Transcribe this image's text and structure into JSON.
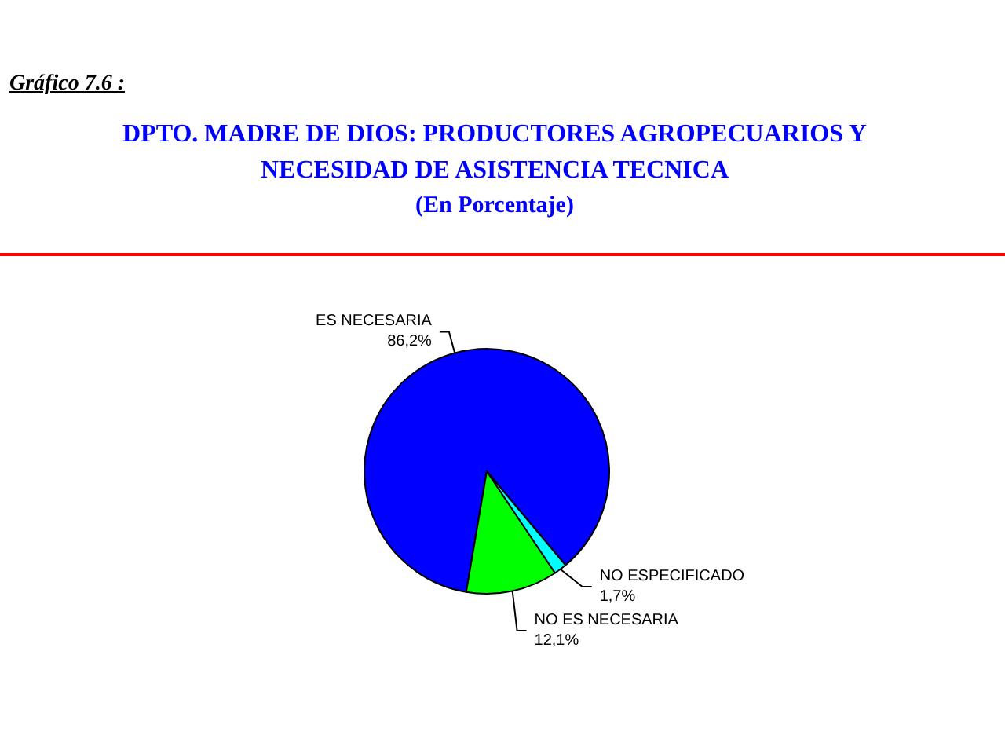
{
  "chart_data": {
    "type": "pie",
    "title": "DPTO. MADRE DE DIOS: PRODUCTORES AGROPECUARIOS Y NECESIDAD DE ASISTENCIA TECNICA",
    "subtitle": "(En Porcentaje)",
    "annotations": [
      "Gráfico 7.6 :"
    ],
    "categories": [
      "ES NECESARIA",
      "NO ES NECESARIA",
      "NO ESPECIFICADO"
    ],
    "values": [
      86.2,
      12.1,
      1.7
    ],
    "value_labels": [
      "86,2%",
      "12,1%",
      "1,7%"
    ],
    "colors": [
      "#0000ff",
      "#00ff00",
      "#00ffff"
    ]
  }
}
